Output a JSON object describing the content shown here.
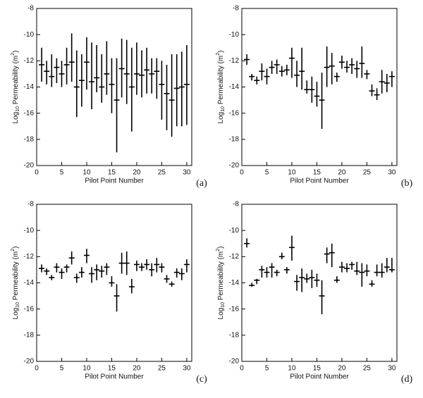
{
  "chart_data": [
    {
      "type": "errorbar",
      "panel_label": "(a)",
      "xlabel": "Pilot Point Number",
      "ylabel": {
        "base": "Log",
        "sub": "10",
        "text": " Permeability (m",
        "sup": "2",
        "end": ")"
      },
      "xlim": [
        0,
        31
      ],
      "xticks": [
        0,
        5,
        10,
        15,
        20,
        25,
        30
      ],
      "ylim": [
        -20,
        -8
      ],
      "yticks": [
        -20,
        -18,
        -16,
        -14,
        -12,
        -10,
        -8
      ],
      "color": "#000000",
      "x": [
        1,
        2,
        3,
        4,
        5,
        6,
        7,
        8,
        9,
        10,
        11,
        12,
        13,
        14,
        15,
        16,
        17,
        18,
        19,
        20,
        21,
        22,
        23,
        24,
        25,
        26,
        27,
        28,
        29,
        30
      ],
      "values": [
        -12.3,
        -12.8,
        -13.2,
        -12.5,
        -13,
        -12.3,
        -12.1,
        -14,
        -13.5,
        -12.1,
        -13.6,
        -13.3,
        -14,
        -13,
        -13.8,
        -15,
        -12.6,
        -13,
        -14,
        -13,
        -13.1,
        -12.7,
        -13,
        -12.8,
        -13.8,
        -14.5,
        -15,
        -14.1,
        -14,
        -13.8
      ],
      "lower": [
        -13.6,
        -13.8,
        -14,
        -13.7,
        -14,
        -13.8,
        -13.6,
        -16.3,
        -15.5,
        -14.2,
        -15.7,
        -14.4,
        -15.2,
        -14.6,
        -16,
        -19,
        -14.8,
        -15.3,
        -17.4,
        -14.6,
        -14.8,
        -14.5,
        -14.5,
        -14.9,
        -16.5,
        -17.3,
        -17.8,
        -17,
        -17,
        -16.9
      ],
      "upper": [
        -11,
        -12,
        -11.5,
        -11.8,
        -12,
        -11,
        -9.9,
        -11.2,
        -11.5,
        -10.2,
        -10.6,
        -10.8,
        -11.5,
        -10.5,
        -11.8,
        -11.8,
        -10.3,
        -10.4,
        -11,
        -10.6,
        -11.2,
        -11,
        -11.8,
        -11.8,
        -12,
        -12.3,
        -11.5,
        -11.5,
        -11.3,
        -10.8
      ]
    },
    {
      "type": "errorbar",
      "panel_label": "(b)",
      "xlabel": "Pilot Point Number",
      "ylabel": {
        "base": "Log",
        "sub": "10",
        "text": " Permeability (m",
        "sup": "2",
        "end": ")"
      },
      "xlim": [
        0,
        31
      ],
      "xticks": [
        0,
        5,
        10,
        15,
        20,
        25,
        30
      ],
      "ylim": [
        -20,
        -8
      ],
      "yticks": [
        -20,
        -18,
        -16,
        -14,
        -12,
        -10,
        -8
      ],
      "color": "#000000",
      "x": [
        1,
        2,
        3,
        4,
        5,
        6,
        7,
        8,
        9,
        10,
        11,
        12,
        13,
        14,
        15,
        16,
        17,
        18,
        19,
        20,
        21,
        22,
        23,
        24,
        25,
        26,
        27,
        28,
        29,
        30
      ],
      "values": [
        -11.9,
        -13.2,
        -13.5,
        -12.8,
        -13.2,
        -12.5,
        -12.3,
        -12.8,
        -12.7,
        -11.8,
        -13.1,
        -12.8,
        -14.2,
        -14.2,
        -14.7,
        -15,
        -12.5,
        -12.4,
        -13.2,
        -12.1,
        -12.5,
        -12.3,
        -12.6,
        -12.2,
        -13,
        -14.3,
        -14.6,
        -13.6,
        -13.7,
        -13.2
      ],
      "lower": [
        -12.3,
        -13.5,
        -13.8,
        -13.5,
        -13.8,
        -13,
        -13,
        -13.2,
        -13.1,
        -13.3,
        -14,
        -14.2,
        -14.5,
        -15.2,
        -15.5,
        -17.2,
        -14,
        -13.8,
        -13.6,
        -12.6,
        -12.9,
        -13,
        -13.3,
        -13.3,
        -13.4,
        -14.7,
        -15,
        -14.5,
        -14.4,
        -14
      ],
      "upper": [
        -11.5,
        -13,
        -13.2,
        -12.2,
        -12.6,
        -12,
        -11.9,
        -12.4,
        -12.3,
        -11,
        -12,
        -11,
        -13.5,
        -13.2,
        -13.6,
        -12.9,
        -10.9,
        -11.4,
        -12.9,
        -11.6,
        -12,
        -11.8,
        -12,
        -10.9,
        -12.7,
        -13.8,
        -14.1,
        -12.7,
        -13,
        -12.8
      ]
    },
    {
      "type": "errorbar",
      "panel_label": "(c)",
      "xlabel": "Pilot Point Number",
      "ylabel": {
        "base": "Log",
        "sub": "10",
        "text": " Permeability (m",
        "sup": "2",
        "end": ")"
      },
      "xlim": [
        0,
        31
      ],
      "xticks": [
        0,
        5,
        10,
        15,
        20,
        25,
        30
      ],
      "ylim": [
        -20,
        -8
      ],
      "yticks": [
        -20,
        -18,
        -16,
        -14,
        -12,
        -10,
        -8
      ],
      "color": "#000000",
      "x": [
        1,
        2,
        3,
        4,
        5,
        6,
        7,
        8,
        9,
        10,
        11,
        12,
        13,
        14,
        15,
        16,
        17,
        18,
        19,
        20,
        21,
        22,
        23,
        24,
        25,
        26,
        27,
        28,
        29,
        30
      ],
      "values": [
        -12.9,
        -13.1,
        -13.6,
        -12.8,
        -13.2,
        -12.8,
        -12.1,
        -13.6,
        -13.2,
        -11.9,
        -13.3,
        -13,
        -13.1,
        -12.8,
        -14,
        -15,
        -12.5,
        -12.5,
        -14.3,
        -12.6,
        -12.8,
        -12.6,
        -13,
        -12.6,
        -12.8,
        -13.7,
        -14.1,
        -13.2,
        -13.3,
        -12.6
      ],
      "lower": [
        -13.2,
        -13.4,
        -13.8,
        -13.2,
        -13.7,
        -13.2,
        -12.6,
        -14,
        -13.6,
        -12.5,
        -14,
        -13.8,
        -13.6,
        -13.4,
        -14.3,
        -16.2,
        -13.3,
        -13.4,
        -14.8,
        -13.1,
        -13.1,
        -13,
        -13.5,
        -13.2,
        -13.2,
        -14,
        -14.3,
        -13.6,
        -13.8,
        -13.2
      ],
      "upper": [
        -12.6,
        -12.9,
        -13.4,
        -12.5,
        -12.9,
        -12.6,
        -11.6,
        -13.3,
        -12.8,
        -11.4,
        -12.8,
        -12.6,
        -12.7,
        -12.5,
        -13.5,
        -14.1,
        -11.7,
        -11.6,
        -13.7,
        -12.3,
        -12.5,
        -12.2,
        -12.5,
        -12.1,
        -12.5,
        -13.4,
        -13.9,
        -12.9,
        -12.9,
        -12.2
      ]
    },
    {
      "type": "errorbar",
      "panel_label": "(d)",
      "xlabel": "Pilot Point Number",
      "ylabel": {
        "base": "Log",
        "sub": "10",
        "text": " Permeability (m",
        "sup": "2",
        "end": ")"
      },
      "xlim": [
        0,
        31
      ],
      "xticks": [
        0,
        5,
        10,
        15,
        20,
        25,
        30
      ],
      "ylim": [
        -20,
        -8
      ],
      "yticks": [
        -20,
        -18,
        -16,
        -14,
        -12,
        -10,
        -8
      ],
      "color": "#000000",
      "x": [
        1,
        2,
        3,
        4,
        5,
        6,
        7,
        8,
        9,
        10,
        11,
        12,
        13,
        14,
        15,
        16,
        17,
        18,
        19,
        20,
        21,
        22,
        23,
        24,
        25,
        26,
        27,
        28,
        29,
        30
      ],
      "values": [
        -11,
        -14.2,
        -13.8,
        -13,
        -13.2,
        -12.8,
        -13.2,
        -12,
        -13,
        -11.3,
        -13.9,
        -13.6,
        -13.7,
        -13.6,
        -13.8,
        -15,
        -11.8,
        -11.7,
        -13.8,
        -12.8,
        -12.9,
        -12.6,
        -13.1,
        -13.2,
        -13.1,
        -14.1,
        -13.2,
        -13.2,
        -12.8,
        -13
      ],
      "lower": [
        -11.3,
        -14.3,
        -14.1,
        -13.6,
        -13.6,
        -13.6,
        -13.5,
        -12.2,
        -13.3,
        -12.3,
        -14.6,
        -14.7,
        -14,
        -14.4,
        -14.3,
        -16.4,
        -12.5,
        -12.8,
        -14,
        -13.2,
        -13.2,
        -13,
        -13.4,
        -14.3,
        -13.5,
        -14.3,
        -13.5,
        -13.6,
        -13.2,
        -13.2
      ],
      "upper": [
        -10.6,
        -14,
        -13.7,
        -12.7,
        -12.8,
        -12.5,
        -13,
        -11.7,
        -12.8,
        -10.4,
        -13.4,
        -12.9,
        -13.3,
        -13,
        -13.3,
        -13.8,
        -11.3,
        -11,
        -13.5,
        -12.4,
        -12.5,
        -12.4,
        -12.4,
        -12.5,
        -12.6,
        -13.8,
        -12.6,
        -12.5,
        -12.1,
        -12.1
      ]
    }
  ]
}
